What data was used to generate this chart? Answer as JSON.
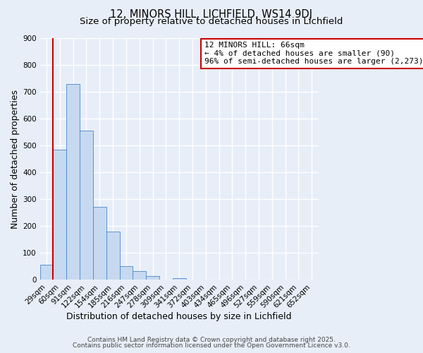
{
  "title": "12, MINORS HILL, LICHFIELD, WS14 9DJ",
  "subtitle": "Size of property relative to detached houses in Lichfield",
  "xlabel": "Distribution of detached houses by size in Lichfield",
  "ylabel": "Number of detached properties",
  "bar_labels": [
    "29sqm",
    "60sqm",
    "91sqm",
    "122sqm",
    "154sqm",
    "185sqm",
    "216sqm",
    "247sqm",
    "278sqm",
    "309sqm",
    "341sqm",
    "372sqm",
    "403sqm",
    "434sqm",
    "465sqm",
    "496sqm",
    "527sqm",
    "559sqm",
    "590sqm",
    "621sqm",
    "652sqm"
  ],
  "bar_values": [
    55,
    485,
    730,
    555,
    270,
    178,
    50,
    33,
    14,
    0,
    5,
    0,
    0,
    0,
    0,
    0,
    0,
    0,
    0,
    0,
    0
  ],
  "bar_color": "#c6d9f0",
  "bar_edge_color": "#4a86c8",
  "vline_color": "#cc0000",
  "annotation_text": "12 MINORS HILL: 66sqm\n← 4% of detached houses are smaller (90)\n96% of semi-detached houses are larger (2,273) →",
  "annotation_box_facecolor": "#ffffff",
  "annotation_box_edgecolor": "#cc0000",
  "ylim": [
    0,
    900
  ],
  "yticks": [
    0,
    100,
    200,
    300,
    400,
    500,
    600,
    700,
    800,
    900
  ],
  "footer1": "Contains HM Land Registry data © Crown copyright and database right 2025.",
  "footer2": "Contains public sector information licensed under the Open Government Licence v3.0.",
  "bg_color": "#e8eef8",
  "plot_bg_color": "#e8eef8",
  "grid_color": "#ffffff",
  "title_fontsize": 10.5,
  "subtitle_fontsize": 9.5,
  "axis_label_fontsize": 9,
  "tick_fontsize": 7.5,
  "annotation_fontsize": 8,
  "footer_fontsize": 6.5
}
